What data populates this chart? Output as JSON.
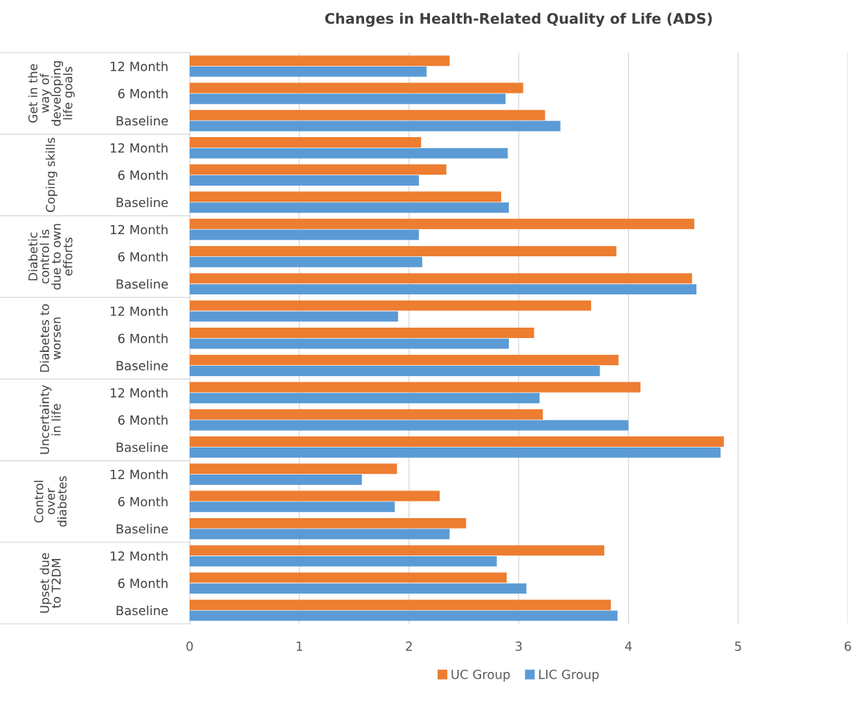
{
  "chart_data": {
    "type": "bar",
    "orientation": "horizontal",
    "title": "Changes in Health-Related Quality of Life (ADS)",
    "categories": [
      "12 Month",
      "6 Month",
      "Baseline",
      "12 Month",
      "6 Month",
      "Baseline",
      "12 Month",
      "6 Month",
      "Baseline",
      "12 Month",
      "6 Month",
      "Baseline",
      "12 Month",
      "6 Month",
      "Baseline",
      "12 Month",
      "6 Month",
      "Baseline",
      "12 Month",
      "6 Month",
      "Baseline"
    ],
    "series": [
      {
        "name": "UC Group",
        "color": "#ed7d31",
        "values": [
          2.37,
          3.04,
          3.24,
          2.11,
          2.34,
          2.84,
          4.6,
          3.89,
          4.58,
          3.66,
          3.14,
          3.91,
          4.11,
          3.22,
          4.87,
          1.89,
          2.28,
          2.52,
          3.78,
          2.89,
          3.84
        ]
      },
      {
        "name": "LIC Group",
        "color": "#5b9bd5",
        "values": [
          2.16,
          2.88,
          3.38,
          2.9,
          2.09,
          2.91,
          2.09,
          2.12,
          4.62,
          1.9,
          2.91,
          3.74,
          3.19,
          4.0,
          4.84,
          1.57,
          1.87,
          2.37,
          2.8,
          3.07,
          3.9
        ]
      }
    ],
    "annotations": [
      "Get in the\nway of\ndeveloping\nlife goals",
      "Coping skills",
      "Diabetic\ncontrol is\ndue to own\nefforts",
      "Diabetes to\nworsen",
      "Uncertainty\nin life",
      "Control\nover\ndiabetes",
      "Upset due\nto T2DM"
    ],
    "xlim": [
      0,
      6
    ],
    "xticks": [
      0,
      1,
      2,
      3,
      4,
      5,
      6
    ],
    "grid": "x",
    "legend": "bottom"
  }
}
